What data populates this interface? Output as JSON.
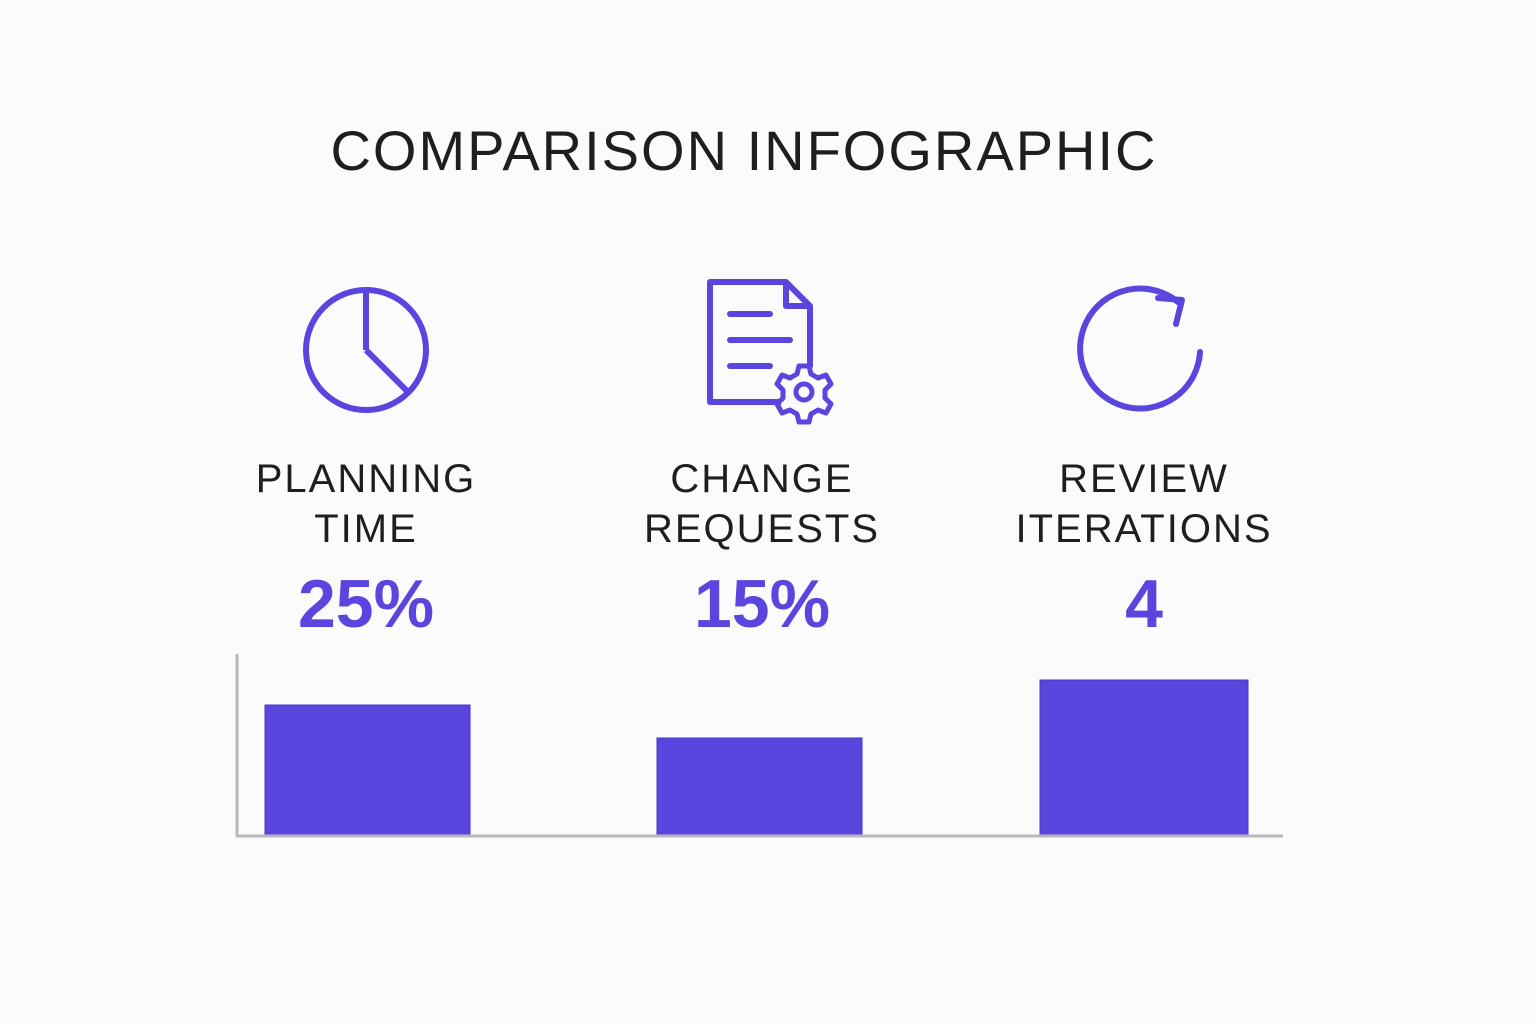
{
  "title": "COMPARISON INFOGRAPHIC",
  "colors": {
    "accent": "#5b45df",
    "axis": "#b8b8b8",
    "text": "#1e1e1e"
  },
  "metrics": [
    {
      "label": "PLANNING\nTIME",
      "value": "25%",
      "icon": "pie-clock-icon"
    },
    {
      "label": "CHANGE\nREQUESTS",
      "value": "15%",
      "icon": "document-gear-icon"
    },
    {
      "label": "REVIEW\nITERATIONS",
      "value": "4",
      "icon": "refresh-icon"
    }
  ],
  "chart_data": {
    "type": "bar",
    "categories": [
      "PLANNING TIME",
      "CHANGE REQUESTS",
      "REVIEW ITERATIONS"
    ],
    "values": [
      130,
      97,
      155
    ],
    "title": "COMPARISON INFOGRAPHIC",
    "xlabel": "",
    "ylabel": "",
    "grid": false,
    "legend": "none"
  }
}
